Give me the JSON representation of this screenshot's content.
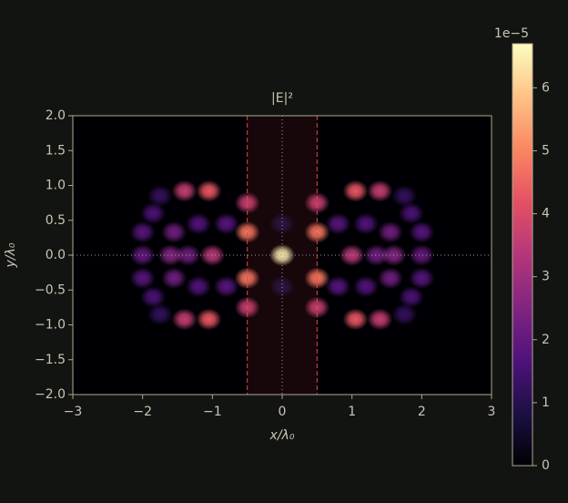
{
  "chart_data": {
    "type": "heatmap",
    "title": "|E|²",
    "x_label": "x/λ₀",
    "y_label": "y/λ₀",
    "xlim": [
      -3,
      3
    ],
    "ylim": [
      -2,
      2
    ],
    "xticks": [
      {
        "value": -3,
        "label": "−3"
      },
      {
        "value": -2,
        "label": "−2"
      },
      {
        "value": -1,
        "label": "−1"
      },
      0,
      1,
      2,
      3
    ],
    "yticks": [
      {
        "value": -2,
        "label": "−2.0"
      },
      {
        "value": -1.5,
        "label": "−1.5"
      },
      {
        "value": -1,
        "label": "−1.0"
      },
      {
        "value": -0.5,
        "label": "−0.5"
      },
      {
        "value": 0,
        "label": "0.0"
      },
      0.5,
      {
        "value": 1,
        "label": "1.0"
      },
      1.5,
      {
        "value": 2,
        "label": "2.0"
      }
    ],
    "colorbar": {
      "offset_label": "1e−5",
      "clim": [
        0,
        6.7
      ],
      "ticks": [
        0,
        1,
        2,
        3,
        4,
        5,
        6
      ],
      "colormap": "magma"
    },
    "band_x": [
      -0.5,
      0.5
    ],
    "band_color": "#e04848",
    "x": [
      0,
      0,
      0,
      0.5,
      0.5,
      0.5,
      0.5,
      1.0,
      1.05,
      1.05,
      1.4,
      1.4,
      1.35,
      1.6,
      2.0,
      2.0,
      2.0,
      1.55,
      1.55,
      1.85,
      1.85,
      0.8,
      0.8,
      1.2,
      1.2,
      1.75,
      1.75,
      -0.5,
      -0.5,
      -0.5,
      -0.5,
      -1.0,
      -1.05,
      -1.05,
      -1.4,
      -1.4,
      -1.35,
      -1.6,
      -2.0,
      -2.0,
      -2.0,
      -1.55,
      -1.55,
      -1.85,
      -1.85,
      -0.8,
      -0.8,
      -1.2,
      -1.2,
      -1.75,
      -1.75
    ],
    "y": [
      0,
      0.45,
      -0.45,
      0.33,
      -0.33,
      0.75,
      -0.75,
      0,
      0.92,
      -0.92,
      0.92,
      -0.92,
      0,
      0,
      0,
      0.33,
      -0.33,
      0.33,
      -0.33,
      0.6,
      -0.6,
      0.45,
      -0.45,
      0.45,
      -0.45,
      0.85,
      -0.85,
      0.33,
      -0.33,
      0.75,
      -0.75,
      0,
      0.92,
      -0.92,
      0.92,
      -0.92,
      0,
      0,
      0,
      0.33,
      -0.33,
      0.33,
      -0.33,
      0.6,
      -0.6,
      0.45,
      -0.45,
      0.45,
      -0.45,
      0.85,
      -0.85
    ],
    "values": [
      6.6,
      0.8,
      0.8,
      4.8,
      4.8,
      3.6,
      3.6,
      3.4,
      4.3,
      4.3,
      3.6,
      3.6,
      2.2,
      2.5,
      2.0,
      1.8,
      1.8,
      2.2,
      2.2,
      1.6,
      1.6,
      1.8,
      1.8,
      1.7,
      1.7,
      1.2,
      1.2,
      4.8,
      4.8,
      3.6,
      3.6,
      3.4,
      4.3,
      4.3,
      3.6,
      3.6,
      2.2,
      2.5,
      2.0,
      1.8,
      1.8,
      2.2,
      2.2,
      1.6,
      1.6,
      1.8,
      1.8,
      1.7,
      1.7,
      1.2,
      1.2
    ]
  }
}
